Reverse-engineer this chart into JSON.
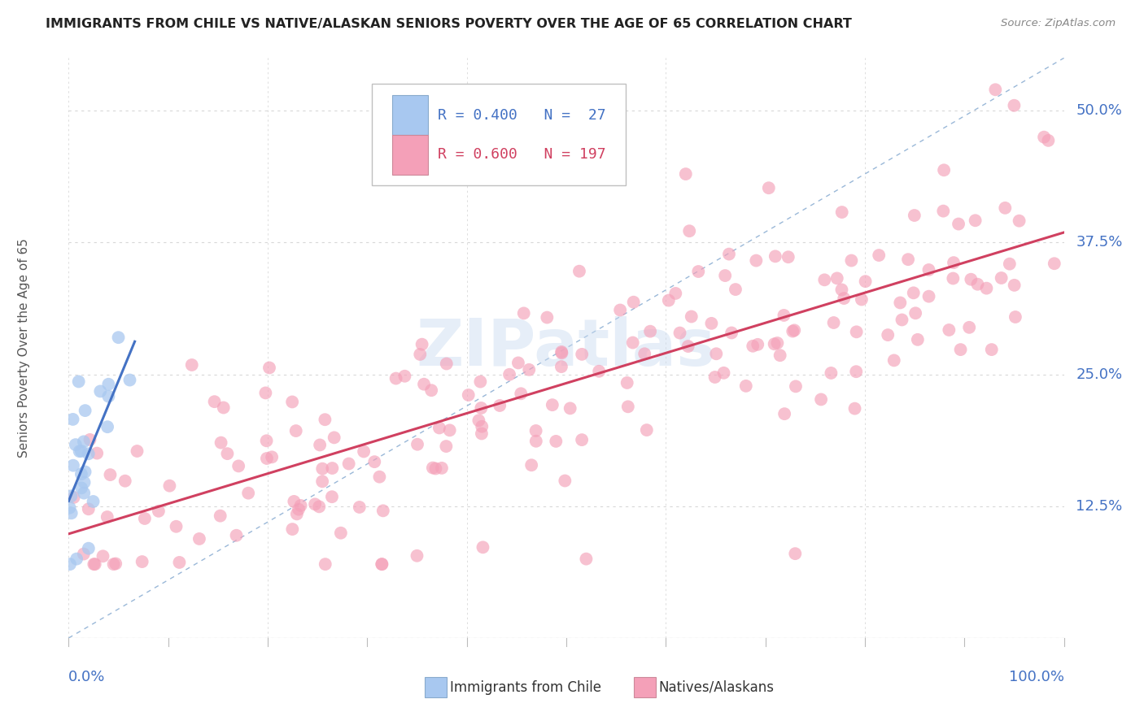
{
  "title": "IMMIGRANTS FROM CHILE VS NATIVE/ALASKAN SENIORS POVERTY OVER THE AGE OF 65 CORRELATION CHART",
  "source": "Source: ZipAtlas.com",
  "xlabel_bottom_left": "0.0%",
  "xlabel_bottom_right": "100.0%",
  "ylabel": "Seniors Poverty Over the Age of 65",
  "ytick_positions": [
    0.0,
    0.125,
    0.25,
    0.375,
    0.5
  ],
  "ytick_labels": [
    "",
    "12.5%",
    "25.0%",
    "37.5%",
    "50.0%"
  ],
  "legend1_label": "Immigrants from Chile",
  "legend2_label": "Natives/Alaskans",
  "R1": 0.4,
  "N1": 27,
  "R2": 0.6,
  "N2": 197,
  "color1": "#a8c8f0",
  "color2": "#f4a0b8",
  "line_color1": "#4472c4",
  "line_color2": "#d04060",
  "diagonal_color": "#9ab8d8",
  "watermark": "ZIPatlas",
  "title_color": "#222222",
  "axis_label_color": "#4472c4",
  "source_color": "#888888",
  "background_color": "#ffffff",
  "grid_color": "#d8d8d8",
  "xlim": [
    0.0,
    1.0
  ],
  "ylim": [
    0.0,
    0.55
  ],
  "scatter_size": 130,
  "scatter_alpha1": 0.75,
  "scatter_alpha2": 0.65,
  "seed": 12345
}
